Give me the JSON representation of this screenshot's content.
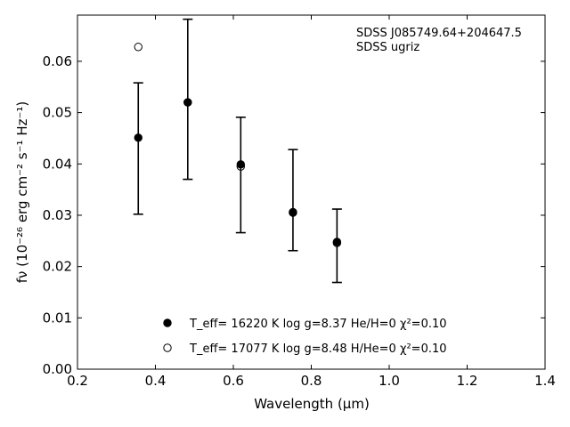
{
  "chart_data": {
    "type": "scatter",
    "title": "",
    "xlabel": "Wavelength (μm)",
    "ylabel": "fν (10⁻²⁶ erg cm⁻² s⁻¹ Hz⁻¹)",
    "xlim": [
      0.2,
      1.4
    ],
    "ylim": [
      0.0,
      0.069
    ],
    "xticks": [
      "0.2",
      "0.4",
      "0.6",
      "0.8",
      "1.0",
      "1.2",
      "1.4"
    ],
    "yticks": [
      "0.00",
      "0.01",
      "0.02",
      "0.03",
      "0.04",
      "0.05",
      "0.06"
    ],
    "grid": false,
    "legend_position": "bottom-center",
    "annotations": [
      "SDSS J085749.64+204647.5",
      "SDSS ugriz"
    ],
    "observed": {
      "x": [
        0.356,
        0.483,
        0.619,
        0.753,
        0.866
      ],
      "y": [
        0.0451,
        0.052,
        0.0399,
        0.0306,
        0.0248
      ],
      "yerr_low": [
        0.0302,
        0.037,
        0.0266,
        0.0231,
        0.0169
      ],
      "yerr_high": [
        0.0558,
        0.0682,
        0.0491,
        0.0428,
        0.0312
      ]
    },
    "series": [
      {
        "name": "T_eff= 16220 K  log g=8.37  He/H=0  χ²=0.10",
        "marker": "filled-circle",
        "x": [
          0.356,
          0.483,
          0.619,
          0.753,
          0.866
        ],
        "y": [
          0.0451,
          0.052,
          0.0399,
          0.0306,
          0.0248
        ]
      },
      {
        "name": "T_eff= 17077 K  log g=8.48  H/He=0  χ²=0.10",
        "marker": "open-circle",
        "x": [
          0.356,
          0.483,
          0.619,
          0.753,
          0.866
        ],
        "y": [
          0.0628,
          0.052,
          0.0395,
          0.0305,
          0.0246
        ]
      }
    ]
  }
}
